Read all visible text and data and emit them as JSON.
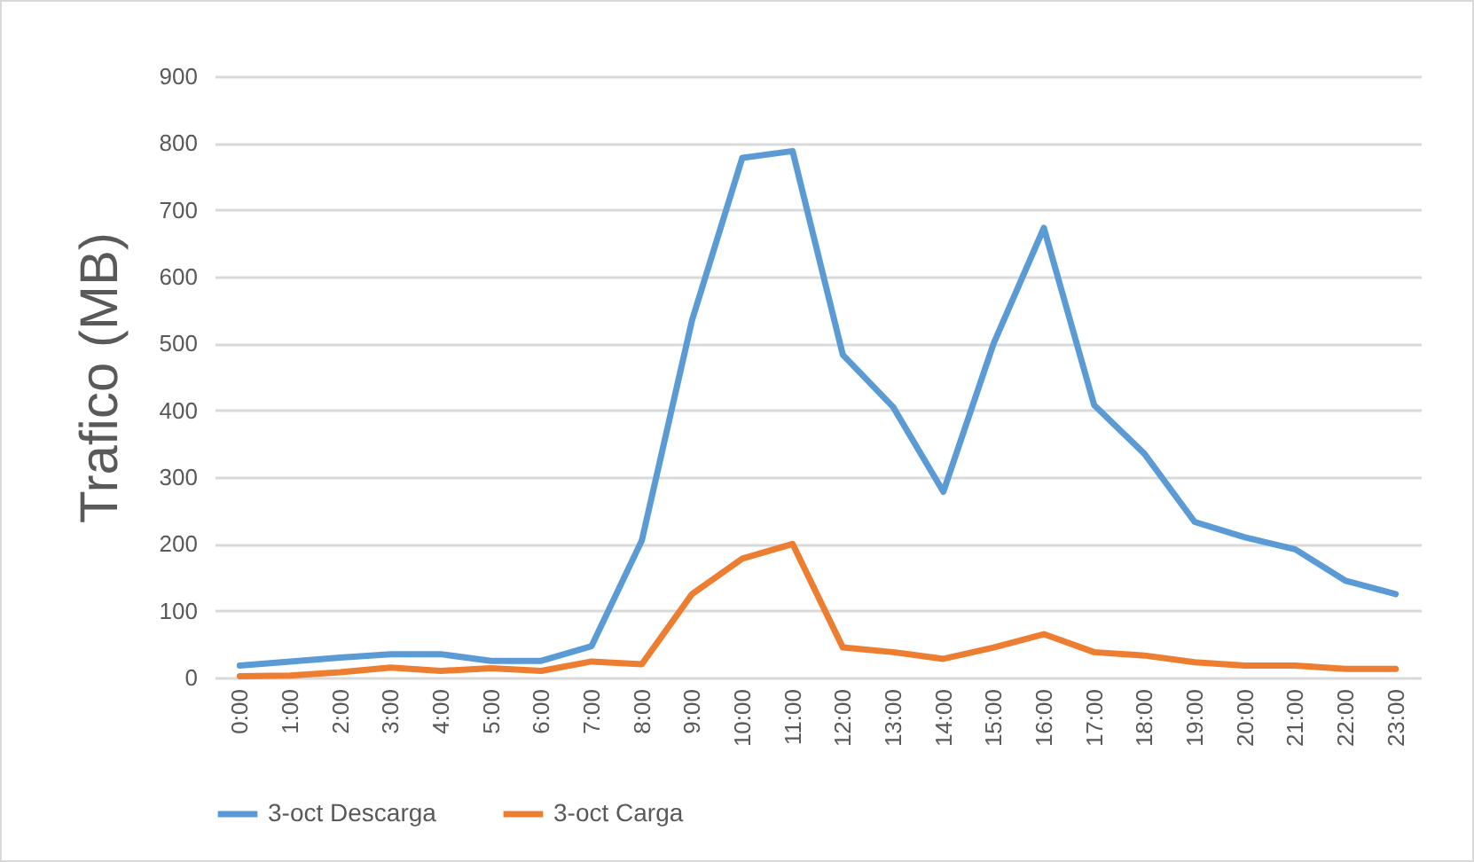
{
  "chart_data": {
    "type": "line",
    "ylabel": "Trafico (MB)",
    "categories": [
      "0:00",
      "1:00",
      "2:00",
      "3:00",
      "4:00",
      "5:00",
      "6:00",
      "7:00",
      "8:00",
      "9:00",
      "10:00",
      "11:00",
      "12:00",
      "13:00",
      "14:00",
      "15:00",
      "16:00",
      "17:00",
      "18:00",
      "19:00",
      "20:00",
      "21:00",
      "22:00",
      "23:00"
    ],
    "series": [
      {
        "name": "3-oct Descarga",
        "color": "#5b9bd5",
        "values": [
          18,
          24,
          30,
          35,
          35,
          25,
          25,
          47,
          205,
          535,
          778,
          788,
          483,
          405,
          278,
          500,
          673,
          408,
          335,
          233,
          210,
          192,
          145,
          125
        ]
      },
      {
        "name": "3-oct Carga",
        "color": "#ed7d31",
        "values": [
          2,
          3,
          8,
          15,
          10,
          14,
          10,
          24,
          20,
          125,
          178,
          200,
          45,
          38,
          28,
          45,
          65,
          38,
          33,
          23,
          18,
          18,
          13,
          13
        ]
      }
    ],
    "ylim": [
      0,
      900
    ],
    "yticks": [
      0,
      100,
      200,
      300,
      400,
      500,
      600,
      700,
      800,
      900
    ],
    "grid": "y",
    "legend": "bottom",
    "marker": "none",
    "line_style": "solid"
  }
}
